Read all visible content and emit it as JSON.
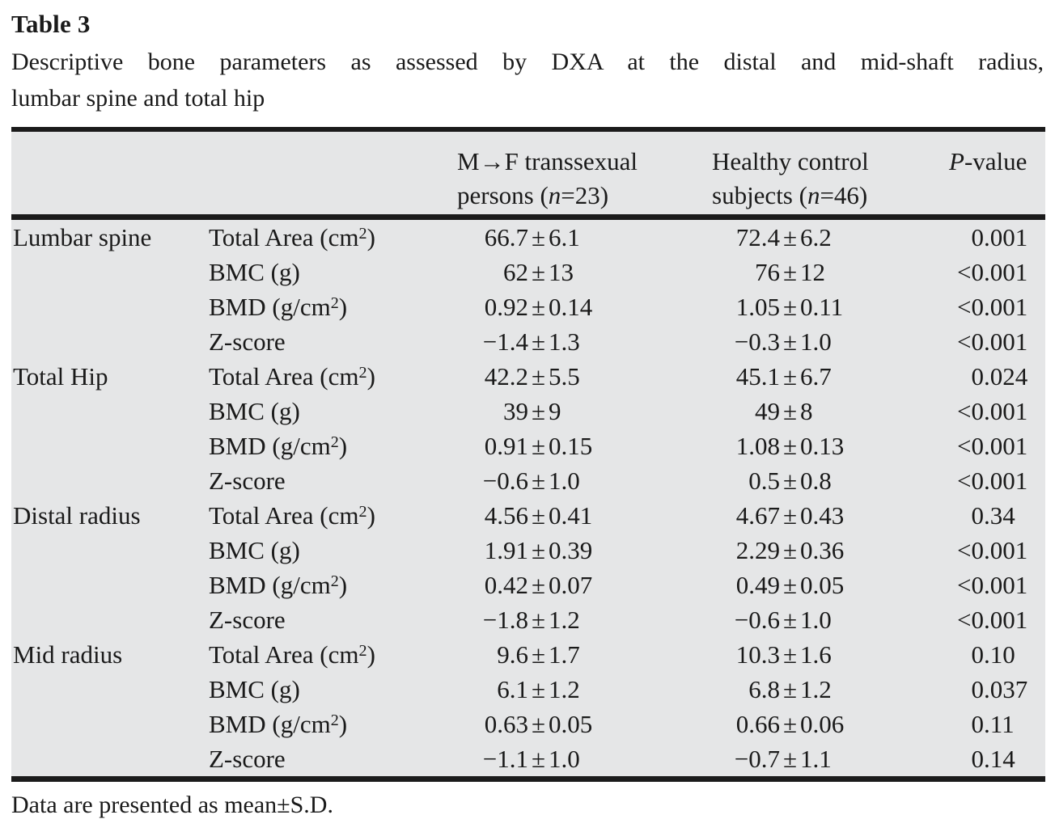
{
  "title": "Table 3",
  "caption": {
    "line1": "Descriptive bone parameters as assessed by DXA at the distal and mid-shaft radius,",
    "line2": "lumbar spine and total hip"
  },
  "footnote": "Data are presented as mean±S.D.",
  "colors": {
    "table_background": "#e5e6e7",
    "rule": "#1b1b1b",
    "text": "#1a1a1a"
  },
  "table": {
    "header": {
      "mf": {
        "line1": "M→F transsexual",
        "line2_pre": "persons (",
        "line2_it": "n",
        "line2_post": "=23)"
      },
      "control": {
        "line1": "Healthy control",
        "line2_pre": "subjects (",
        "line2_it": "n",
        "line2_post": "=46)"
      },
      "pvalue": {
        "it": "P",
        "rest": "-value"
      }
    },
    "groups": [
      {
        "region": "Lumbar spine",
        "rows": [
          {
            "param": "Total Area (cm²)",
            "mf": "66.7±6.1",
            "control": "72.4±6.2",
            "p": "0.001"
          },
          {
            "param": "BMC (g)",
            "mf": "62±13",
            "control": "76±12",
            "p": "<0.001"
          },
          {
            "param": "BMD (g/cm²)",
            "mf": "0.92±0.14",
            "control": "1.05±0.11",
            "p": "<0.001"
          },
          {
            "param": "Z-score",
            "mf": "−1.4±1.3",
            "control": "−0.3±1.0",
            "p": "<0.001"
          }
        ]
      },
      {
        "region": "Total Hip",
        "rows": [
          {
            "param": "Total Area (cm²)",
            "mf": "42.2±5.5",
            "control": "45.1±6.7",
            "p": "0.024"
          },
          {
            "param": "BMC (g)",
            "mf": "39±9",
            "control": "49±8",
            "p": "<0.001"
          },
          {
            "param": "BMD (g/cm²)",
            "mf": "0.91±0.15",
            "control": "1.08±0.13",
            "p": "<0.001"
          },
          {
            "param": "Z-score",
            "mf": "−0.6±1.0",
            "control": "0.5±0.8",
            "p": "<0.001"
          }
        ]
      },
      {
        "region": "Distal radius",
        "rows": [
          {
            "param": "Total Area (cm²)",
            "mf": "4.56±0.41",
            "control": "4.67±0.43",
            "p": "0.34"
          },
          {
            "param": "BMC (g)",
            "mf": "1.91±0.39",
            "control": "2.29±0.36",
            "p": "<0.001"
          },
          {
            "param": "BMD (g/cm²)",
            "mf": "0.42±0.07",
            "control": "0.49±0.05",
            "p": "<0.001"
          },
          {
            "param": "Z-score",
            "mf": "−1.8±1.2",
            "control": "−0.6±1.0",
            "p": "<0.001"
          }
        ]
      },
      {
        "region": "Mid radius",
        "rows": [
          {
            "param": "Total Area (cm²)",
            "mf": "9.6±1.7",
            "control": "10.3±1.6",
            "p": "0.10"
          },
          {
            "param": "BMC (g)",
            "mf": "6.1±1.2",
            "control": "6.8±1.2",
            "p": "0.037"
          },
          {
            "param": "BMD (g/cm²)",
            "mf": "0.63±0.05",
            "control": "0.66±0.06",
            "p": "0.11"
          },
          {
            "param": "Z-score",
            "mf": "−1.1±1.0",
            "control": "−0.7±1.1",
            "p": "0.14"
          }
        ]
      }
    ]
  }
}
